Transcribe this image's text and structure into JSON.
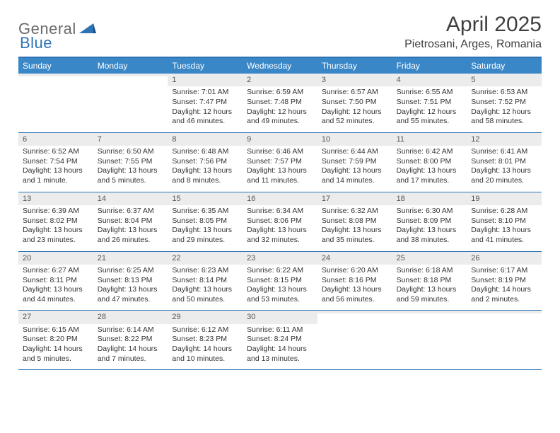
{
  "logo": {
    "text1": "General",
    "text2": "Blue"
  },
  "title": "April 2025",
  "location": "Pietrosani, Arges, Romania",
  "colors": {
    "accent": "#2e74b5",
    "header_bg": "#3a87c8",
    "daynum_bg": "#ececec",
    "text": "#333333",
    "logo_gray": "#6a6a6a"
  },
  "day_headers": [
    "Sunday",
    "Monday",
    "Tuesday",
    "Wednesday",
    "Thursday",
    "Friday",
    "Saturday"
  ],
  "weeks": [
    [
      {
        "day": "",
        "lines": []
      },
      {
        "day": "",
        "lines": []
      },
      {
        "day": "1",
        "lines": [
          "Sunrise: 7:01 AM",
          "Sunset: 7:47 PM",
          "Daylight: 12 hours",
          "and 46 minutes."
        ]
      },
      {
        "day": "2",
        "lines": [
          "Sunrise: 6:59 AM",
          "Sunset: 7:48 PM",
          "Daylight: 12 hours",
          "and 49 minutes."
        ]
      },
      {
        "day": "3",
        "lines": [
          "Sunrise: 6:57 AM",
          "Sunset: 7:50 PM",
          "Daylight: 12 hours",
          "and 52 minutes."
        ]
      },
      {
        "day": "4",
        "lines": [
          "Sunrise: 6:55 AM",
          "Sunset: 7:51 PM",
          "Daylight: 12 hours",
          "and 55 minutes."
        ]
      },
      {
        "day": "5",
        "lines": [
          "Sunrise: 6:53 AM",
          "Sunset: 7:52 PM",
          "Daylight: 12 hours",
          "and 58 minutes."
        ]
      }
    ],
    [
      {
        "day": "6",
        "lines": [
          "Sunrise: 6:52 AM",
          "Sunset: 7:54 PM",
          "Daylight: 13 hours",
          "and 1 minute."
        ]
      },
      {
        "day": "7",
        "lines": [
          "Sunrise: 6:50 AM",
          "Sunset: 7:55 PM",
          "Daylight: 13 hours",
          "and 5 minutes."
        ]
      },
      {
        "day": "8",
        "lines": [
          "Sunrise: 6:48 AM",
          "Sunset: 7:56 PM",
          "Daylight: 13 hours",
          "and 8 minutes."
        ]
      },
      {
        "day": "9",
        "lines": [
          "Sunrise: 6:46 AM",
          "Sunset: 7:57 PM",
          "Daylight: 13 hours",
          "and 11 minutes."
        ]
      },
      {
        "day": "10",
        "lines": [
          "Sunrise: 6:44 AM",
          "Sunset: 7:59 PM",
          "Daylight: 13 hours",
          "and 14 minutes."
        ]
      },
      {
        "day": "11",
        "lines": [
          "Sunrise: 6:42 AM",
          "Sunset: 8:00 PM",
          "Daylight: 13 hours",
          "and 17 minutes."
        ]
      },
      {
        "day": "12",
        "lines": [
          "Sunrise: 6:41 AM",
          "Sunset: 8:01 PM",
          "Daylight: 13 hours",
          "and 20 minutes."
        ]
      }
    ],
    [
      {
        "day": "13",
        "lines": [
          "Sunrise: 6:39 AM",
          "Sunset: 8:02 PM",
          "Daylight: 13 hours",
          "and 23 minutes."
        ]
      },
      {
        "day": "14",
        "lines": [
          "Sunrise: 6:37 AM",
          "Sunset: 8:04 PM",
          "Daylight: 13 hours",
          "and 26 minutes."
        ]
      },
      {
        "day": "15",
        "lines": [
          "Sunrise: 6:35 AM",
          "Sunset: 8:05 PM",
          "Daylight: 13 hours",
          "and 29 minutes."
        ]
      },
      {
        "day": "16",
        "lines": [
          "Sunrise: 6:34 AM",
          "Sunset: 8:06 PM",
          "Daylight: 13 hours",
          "and 32 minutes."
        ]
      },
      {
        "day": "17",
        "lines": [
          "Sunrise: 6:32 AM",
          "Sunset: 8:08 PM",
          "Daylight: 13 hours",
          "and 35 minutes."
        ]
      },
      {
        "day": "18",
        "lines": [
          "Sunrise: 6:30 AM",
          "Sunset: 8:09 PM",
          "Daylight: 13 hours",
          "and 38 minutes."
        ]
      },
      {
        "day": "19",
        "lines": [
          "Sunrise: 6:28 AM",
          "Sunset: 8:10 PM",
          "Daylight: 13 hours",
          "and 41 minutes."
        ]
      }
    ],
    [
      {
        "day": "20",
        "lines": [
          "Sunrise: 6:27 AM",
          "Sunset: 8:11 PM",
          "Daylight: 13 hours",
          "and 44 minutes."
        ]
      },
      {
        "day": "21",
        "lines": [
          "Sunrise: 6:25 AM",
          "Sunset: 8:13 PM",
          "Daylight: 13 hours",
          "and 47 minutes."
        ]
      },
      {
        "day": "22",
        "lines": [
          "Sunrise: 6:23 AM",
          "Sunset: 8:14 PM",
          "Daylight: 13 hours",
          "and 50 minutes."
        ]
      },
      {
        "day": "23",
        "lines": [
          "Sunrise: 6:22 AM",
          "Sunset: 8:15 PM",
          "Daylight: 13 hours",
          "and 53 minutes."
        ]
      },
      {
        "day": "24",
        "lines": [
          "Sunrise: 6:20 AM",
          "Sunset: 8:16 PM",
          "Daylight: 13 hours",
          "and 56 minutes."
        ]
      },
      {
        "day": "25",
        "lines": [
          "Sunrise: 6:18 AM",
          "Sunset: 8:18 PM",
          "Daylight: 13 hours",
          "and 59 minutes."
        ]
      },
      {
        "day": "26",
        "lines": [
          "Sunrise: 6:17 AM",
          "Sunset: 8:19 PM",
          "Daylight: 14 hours",
          "and 2 minutes."
        ]
      }
    ],
    [
      {
        "day": "27",
        "lines": [
          "Sunrise: 6:15 AM",
          "Sunset: 8:20 PM",
          "Daylight: 14 hours",
          "and 5 minutes."
        ]
      },
      {
        "day": "28",
        "lines": [
          "Sunrise: 6:14 AM",
          "Sunset: 8:22 PM",
          "Daylight: 14 hours",
          "and 7 minutes."
        ]
      },
      {
        "day": "29",
        "lines": [
          "Sunrise: 6:12 AM",
          "Sunset: 8:23 PM",
          "Daylight: 14 hours",
          "and 10 minutes."
        ]
      },
      {
        "day": "30",
        "lines": [
          "Sunrise: 6:11 AM",
          "Sunset: 8:24 PM",
          "Daylight: 14 hours",
          "and 13 minutes."
        ]
      },
      {
        "day": "",
        "lines": []
      },
      {
        "day": "",
        "lines": []
      },
      {
        "day": "",
        "lines": []
      }
    ]
  ]
}
